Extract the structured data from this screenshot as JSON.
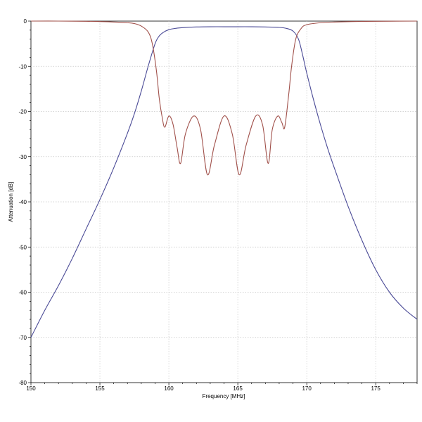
{
  "chart_data": {
    "type": "line",
    "title": "",
    "xlabel": "Frequency [MHz]",
    "ylabel": "Attenuation [dB]",
    "xlim": [
      150,
      178
    ],
    "ylim": [
      -80,
      0
    ],
    "xticks": [
      150,
      155,
      160,
      165,
      170,
      175
    ],
    "yticks": [
      0,
      -10,
      -20,
      -30,
      -40,
      -50,
      -60,
      -70,
      -80
    ],
    "grid": true,
    "legend": "none",
    "series": [
      {
        "color": "#4a4a96",
        "x": [
          150,
          151,
          152,
          153,
          154,
          155,
          156,
          157,
          157.5,
          158,
          158.5,
          159,
          159.3,
          159.6,
          160,
          160.5,
          161,
          162,
          163,
          164,
          165,
          166,
          167,
          168,
          168.5,
          169,
          169.4,
          169.7,
          170,
          170.5,
          171,
          171.5,
          172,
          173,
          174,
          175,
          176,
          177,
          178
        ],
        "y": [
          -70,
          -64,
          -58.5,
          -52.5,
          -46,
          -39.5,
          -32.5,
          -24.8,
          -20.5,
          -15.5,
          -10,
          -5,
          -3.3,
          -2.5,
          -1.9,
          -1.6,
          -1.45,
          -1.3,
          -1.25,
          -1.25,
          -1.25,
          -1.25,
          -1.3,
          -1.4,
          -1.6,
          -2.2,
          -4,
          -7.5,
          -11.5,
          -17.5,
          -23,
          -28,
          -32.5,
          -41,
          -48.5,
          -55,
          -60,
          -63.5,
          -66
        ]
      },
      {
        "color": "#a0504a",
        "x": [
          150,
          152,
          154,
          155,
          156,
          157,
          157.5,
          158,
          158.5,
          158.8,
          159.1,
          159.3,
          159.5,
          159.7,
          160,
          160.3,
          160.6,
          160.85,
          161.2,
          161.8,
          162.3,
          162.8,
          163.3,
          164,
          164.6,
          165.1,
          165.6,
          166.3,
          166.8,
          167.2,
          167.5,
          167.9,
          168.2,
          168.4,
          168.7,
          168.9,
          169.2,
          169.6,
          170,
          171,
          172,
          174,
          176,
          178
        ],
        "y": [
          0,
          0,
          -0.05,
          -0.1,
          -0.2,
          -0.35,
          -0.55,
          -1.1,
          -2.4,
          -5,
          -11,
          -17,
          -21,
          -23.5,
          -21,
          -22.8,
          -28,
          -31.5,
          -25,
          -21,
          -24,
          -34,
          -27.5,
          -21,
          -25,
          -34,
          -27.5,
          -21,
          -23,
          -31.5,
          -24,
          -21,
          -22.5,
          -23.5,
          -16,
          -10,
          -4,
          -1.6,
          -0.8,
          -0.35,
          -0.2,
          -0.08,
          -0.03,
          0
        ]
      }
    ]
  }
}
